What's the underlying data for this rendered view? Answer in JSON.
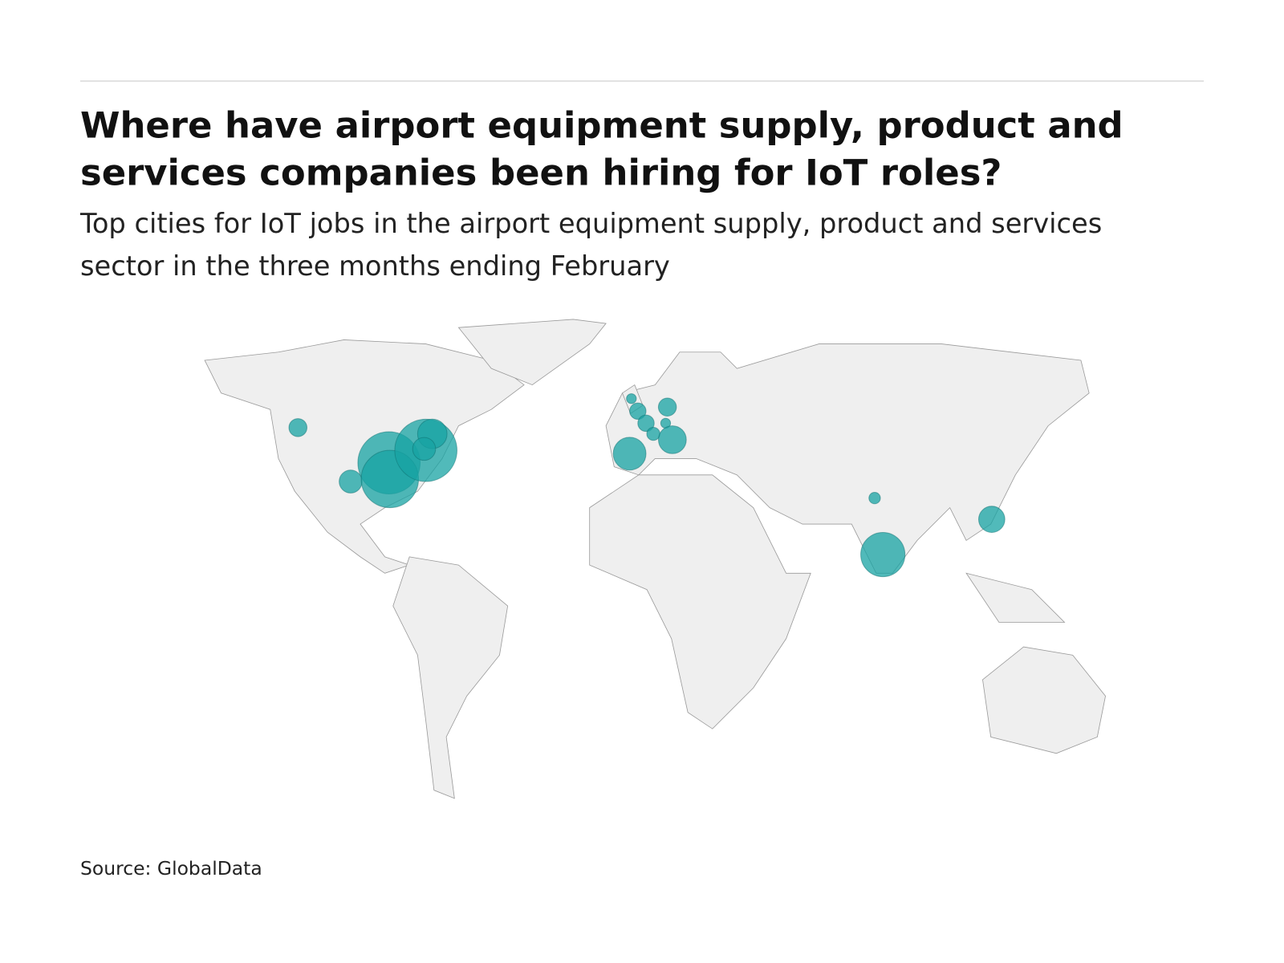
{
  "chart_data": {
    "type": "bubble-map",
    "title": [
      "Where have airport equipment supply, product and",
      "services companies been hiring for IoT roles?"
    ],
    "subtitle": [
      "Top cities for IoT jobs in the airport equipment supply, product and services",
      "sector in the three months ending February"
    ],
    "source": "Source: GlobalData",
    "color": "#17a3a3",
    "lon": [
      -122,
      -104,
      -90.9,
      -90.6,
      -78.3,
      -76.1,
      -78.9,
      -8.1,
      -5.9,
      -3.1,
      -0.6,
      4.2,
      3.6,
      5.9,
      -8.7,
      75.0,
      77.8,
      115.0
    ],
    "lat": [
      47.5,
      32.8,
      37.9,
      33.5,
      41.3,
      45.8,
      41.7,
      55.4,
      52.0,
      48.7,
      45.8,
      53.1,
      48.7,
      44.2,
      40.4,
      28.3,
      12.9,
      22.5
    ],
    "values": [
      11,
      14,
      38,
      35,
      38,
      18,
      14,
      6,
      10,
      10,
      8,
      11,
      6,
      17,
      20,
      7,
      27,
      16
    ]
  }
}
